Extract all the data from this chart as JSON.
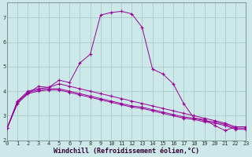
{
  "title": "",
  "xlabel": "Windchill (Refroidissement éolien,°C)",
  "ylabel": "",
  "bg_color": "#cce8e8",
  "line_color": "#990099",
  "grid_color": "#aacccc",
  "line1": {
    "x": [
      0,
      1,
      2,
      3,
      4,
      5,
      6,
      7,
      8,
      9,
      10,
      11,
      12,
      13,
      14,
      15,
      16,
      17,
      18,
      19,
      20,
      21,
      22,
      23
    ],
    "y": [
      2.5,
      3.6,
      3.9,
      4.2,
      4.15,
      4.45,
      4.35,
      5.15,
      5.5,
      7.1,
      7.2,
      7.25,
      7.15,
      6.6,
      4.9,
      4.7,
      4.3,
      3.5,
      2.9,
      2.85,
      2.6,
      2.4,
      2.55,
      null
    ]
  },
  "line2": {
    "x": [
      0,
      1,
      2,
      3,
      4,
      5,
      6,
      7,
      8,
      9,
      10,
      11,
      12,
      13,
      14,
      15,
      16,
      17,
      18,
      19,
      20,
      21,
      22,
      23
    ],
    "y": [
      2.5,
      3.6,
      4.0,
      4.1,
      4.15,
      4.3,
      4.2,
      4.1,
      4.0,
      3.9,
      3.8,
      3.7,
      3.6,
      3.5,
      3.4,
      3.3,
      3.2,
      3.1,
      3.0,
      2.9,
      2.8,
      2.7,
      2.55,
      2.55
    ]
  },
  "line3": {
    "x": [
      0,
      1,
      2,
      3,
      4,
      5,
      6,
      7,
      8,
      9,
      10,
      11,
      12,
      13,
      14,
      15,
      16,
      17,
      18,
      19,
      20,
      21,
      22,
      23
    ],
    "y": [
      2.5,
      3.55,
      3.95,
      4.05,
      4.1,
      4.1,
      4.0,
      3.9,
      3.8,
      3.7,
      3.6,
      3.5,
      3.4,
      3.35,
      3.25,
      3.15,
      3.05,
      2.95,
      2.9,
      2.8,
      2.75,
      2.65,
      2.5,
      2.5
    ]
  },
  "line4": {
    "x": [
      0,
      1,
      2,
      3,
      4,
      5,
      6,
      7,
      8,
      9,
      10,
      11,
      12,
      13,
      14,
      15,
      16,
      17,
      18,
      19,
      20,
      21,
      22,
      23
    ],
    "y": [
      2.5,
      3.5,
      3.9,
      4.0,
      4.05,
      4.05,
      3.95,
      3.85,
      3.75,
      3.65,
      3.55,
      3.45,
      3.35,
      3.3,
      3.2,
      3.1,
      3.0,
      2.9,
      2.85,
      2.75,
      2.7,
      2.6,
      2.45,
      2.45
    ]
  },
  "xlim": [
    0,
    23
  ],
  "ylim": [
    2.0,
    7.6
  ],
  "xticks": [
    0,
    1,
    2,
    3,
    4,
    5,
    6,
    7,
    8,
    9,
    10,
    11,
    12,
    13,
    14,
    15,
    16,
    17,
    18,
    19,
    20,
    21,
    22,
    23
  ],
  "yticks": [
    2,
    3,
    4,
    5,
    6,
    7
  ],
  "tick_fontsize": 5.0,
  "xlabel_fontsize": 6.0,
  "figsize": [
    3.2,
    2.0
  ],
  "dpi": 100
}
